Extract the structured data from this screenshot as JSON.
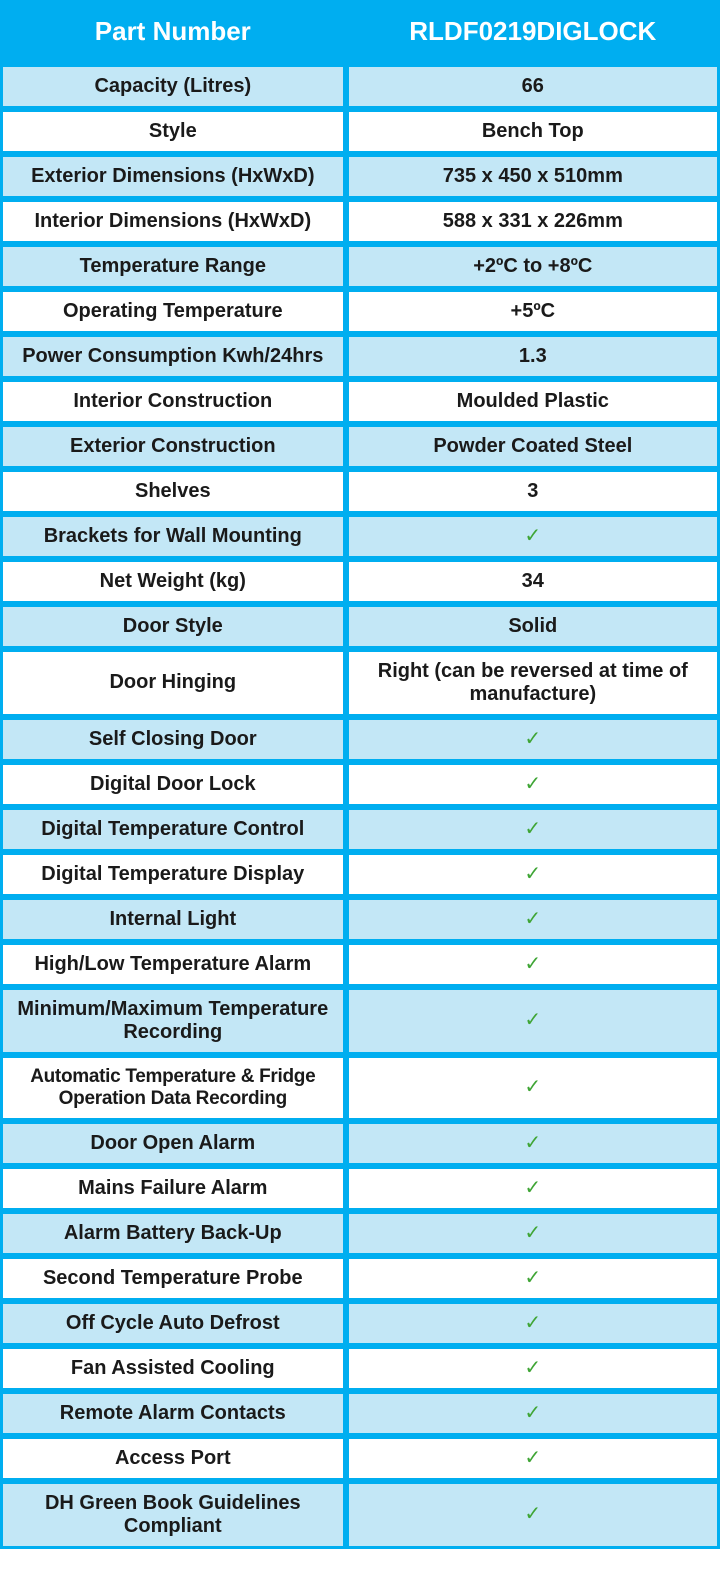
{
  "colors": {
    "border": "#00aef0",
    "header_bg": "#00aef0",
    "header_text": "#ffffff",
    "row_alt_bg": "#c3e7f6",
    "row_bg": "#ffffff",
    "text": "#1a1a1a",
    "check": "#3fa535"
  },
  "header": {
    "left": "Part Number",
    "right": "RLDF0219DIGLOCK"
  },
  "rows": [
    {
      "label": "Capacity (Litres)",
      "value": "66",
      "bg": "lightblue"
    },
    {
      "label": "Style",
      "value": "Bench Top",
      "bg": "white"
    },
    {
      "label": "Exterior Dimensions (HxWxD)",
      "value": "735 x 450 x 510mm",
      "bg": "lightblue"
    },
    {
      "label": "Interior Dimensions (HxWxD)",
      "value": "588 x 331 x 226mm",
      "bg": "white"
    },
    {
      "label": "Temperature Range",
      "value": "+2ºC to +8ºC",
      "bg": "lightblue"
    },
    {
      "label": "Operating Temperature",
      "value": "+5ºC",
      "bg": "white"
    },
    {
      "label": "Power Consumption Kwh/24hrs",
      "value": "1.3",
      "bg": "lightblue"
    },
    {
      "label": "Interior Construction",
      "value": "Moulded Plastic",
      "bg": "white"
    },
    {
      "label": "Exterior Construction",
      "value": "Powder Coated Steel",
      "bg": "lightblue"
    },
    {
      "label": "Shelves",
      "value": "3",
      "bg": "white"
    },
    {
      "label": "Brackets for Wall Mounting",
      "value": "✓",
      "bg": "lightblue",
      "check": true
    },
    {
      "label": "Net Weight (kg)",
      "value": "34",
      "bg": "white"
    },
    {
      "label": "Door Style",
      "value": "Solid",
      "bg": "lightblue"
    },
    {
      "label": "Door Hinging",
      "value": "Right (can be reversed at time of manufacture)",
      "bg": "white"
    },
    {
      "label": "Self Closing Door",
      "value": "✓",
      "bg": "lightblue",
      "check": true
    },
    {
      "label": "Digital Door Lock",
      "value": "✓",
      "bg": "white",
      "check": true
    },
    {
      "label": "Digital Temperature Control",
      "value": "✓",
      "bg": "lightblue",
      "check": true
    },
    {
      "label": "Digital Temperature Display",
      "value": "✓",
      "bg": "white",
      "check": true
    },
    {
      "label": "Internal Light",
      "value": "✓",
      "bg": "lightblue",
      "check": true
    },
    {
      "label": "High/Low Temperature Alarm",
      "value": "✓",
      "bg": "white",
      "check": true
    },
    {
      "label": "Minimum/Maximum Temperature Recording",
      "value": "✓",
      "bg": "lightblue",
      "check": true
    },
    {
      "label": "Automatic Temperature & Fridge Operation Data Recording",
      "value": "✓",
      "bg": "white",
      "check": true,
      "tight": true
    },
    {
      "label": "Door Open Alarm",
      "value": "✓",
      "bg": "lightblue",
      "check": true
    },
    {
      "label": "Mains Failure Alarm",
      "value": "✓",
      "bg": "white",
      "check": true
    },
    {
      "label": "Alarm Battery Back-Up",
      "value": "✓",
      "bg": "lightblue",
      "check": true
    },
    {
      "label": "Second Temperature Probe",
      "value": "✓",
      "bg": "white",
      "check": true
    },
    {
      "label": "Off Cycle Auto Defrost",
      "value": "✓",
      "bg": "lightblue",
      "check": true
    },
    {
      "label": "Fan Assisted Cooling",
      "value": "✓",
      "bg": "white",
      "check": true
    },
    {
      "label": "Remote Alarm Contacts",
      "value": "✓",
      "bg": "lightblue",
      "check": true
    },
    {
      "label": "Access Port",
      "value": "✓",
      "bg": "white",
      "check": true
    },
    {
      "label": "DH Green Book Guidelines Compliant",
      "value": "✓",
      "bg": "lightblue",
      "check": true
    }
  ]
}
